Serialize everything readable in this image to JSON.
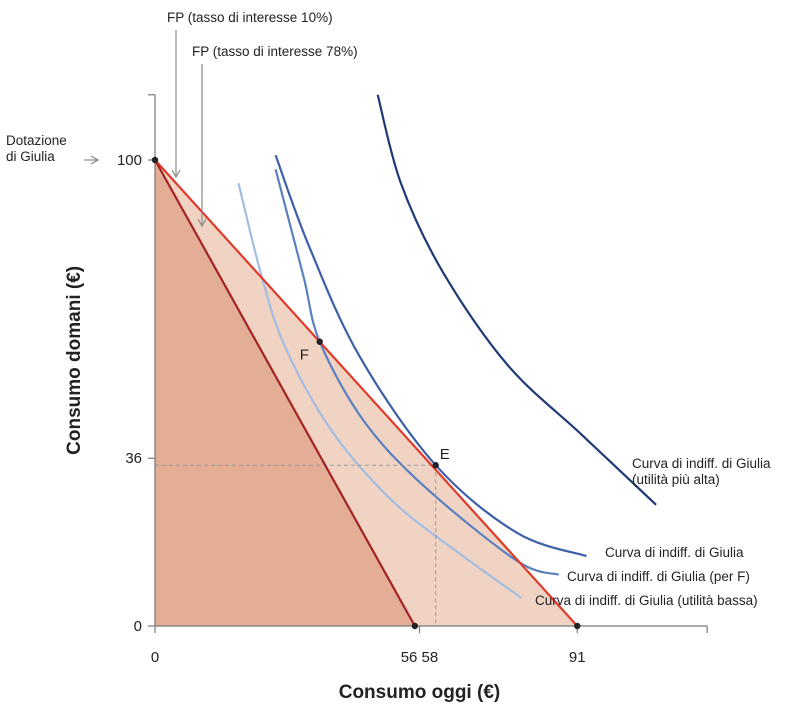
{
  "chart_data": {
    "type": "line",
    "title": "",
    "xlabel": "Consumo oggi (€)",
    "ylabel": "Consumo domani (€)",
    "xlim": [
      0,
      119
    ],
    "ylim": [
      0,
      114
    ],
    "x_ticks": [
      "0",
      "56 58",
      "91"
    ],
    "y_ticks": [
      "0",
      "36",
      "100"
    ],
    "endowment_label": "Dotazione\ndi Giulia",
    "endowment": {
      "x": 0,
      "y": 100
    },
    "budget_lines": [
      {
        "label": "FP (tasso di interesse 10%)",
        "points": [
          {
            "x": 0,
            "y": 100
          },
          {
            "x": 91,
            "y": 0
          }
        ],
        "color": "#e03a2b"
      },
      {
        "label": "FP (tasso di interesse 78%)",
        "points": [
          {
            "x": 0,
            "y": 100
          },
          {
            "x": 56,
            "y": 0
          }
        ],
        "color": "#a32324"
      }
    ],
    "points": [
      {
        "name": "F",
        "x": 35.5,
        "y": 61
      },
      {
        "name": "E",
        "x": 60.5,
        "y": 34.5
      }
    ],
    "reference_lines": [
      {
        "x": 60.5,
        "y": 34.5,
        "dashed": true
      }
    ],
    "indifference_curves": [
      {
        "label": "Curva di indiff. di Giulia (utilità bassa)",
        "color": "#a3bde0",
        "points": [
          [
            18,
            95
          ],
          [
            23,
            75
          ],
          [
            28,
            60
          ],
          [
            38,
            42
          ],
          [
            51,
            27
          ],
          [
            65,
            16
          ],
          [
            79,
            6
          ]
        ]
      },
      {
        "label": "Curva di indiff. di Giulia (per F)",
        "color": "#5b80bf",
        "points": [
          [
            26,
            98
          ],
          [
            32,
            75
          ],
          [
            35.5,
            61
          ],
          [
            45,
            44
          ],
          [
            58,
            30
          ],
          [
            78,
            14
          ],
          [
            87,
            11
          ]
        ]
      },
      {
        "label": "Curva di indiff. di Giulia",
        "color": "#3d60a8",
        "points": [
          [
            26,
            101
          ],
          [
            33,
            82
          ],
          [
            44,
            58
          ],
          [
            60.5,
            34.5
          ],
          [
            78,
            20
          ],
          [
            93,
            15
          ]
        ]
      },
      {
        "label": "Curva di indiff. di Giulia\n(utilità più alta)",
        "color": "#1f3a75",
        "points": [
          [
            48,
            114
          ],
          [
            53,
            95
          ],
          [
            62,
            76
          ],
          [
            76,
            56
          ],
          [
            92,
            41
          ],
          [
            108,
            26
          ]
        ]
      }
    ],
    "regions": [
      {
        "vertices": [
          [
            0,
            100
          ],
          [
            91,
            0
          ],
          [
            0,
            0
          ]
        ],
        "color": "#f1d3c3"
      },
      {
        "vertices": [
          [
            0,
            100
          ],
          [
            56,
            0
          ],
          [
            0,
            0
          ]
        ],
        "color": "#e4ad96"
      }
    ]
  }
}
